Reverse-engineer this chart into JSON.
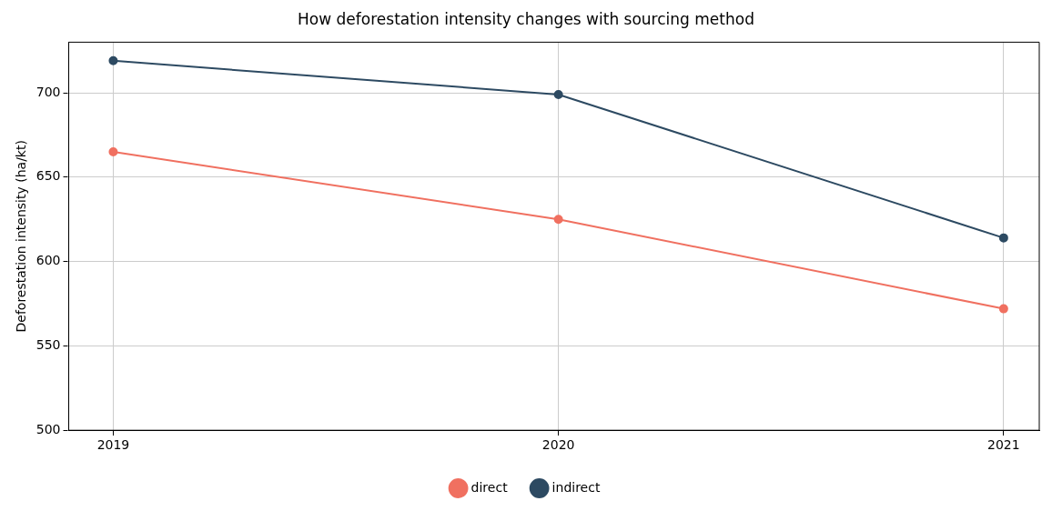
{
  "chart_data": {
    "type": "line",
    "title": "How deforestation intensity changes with sourcing method",
    "ylabel": "Deforestation intensity (ha/kt)",
    "x": [
      2019,
      2020,
      2021
    ],
    "series": [
      {
        "name": "direct",
        "color": "#f07060",
        "values": [
          665,
          625,
          572
        ]
      },
      {
        "name": "indirect",
        "color": "#2d4a62",
        "values": [
          719,
          699,
          614
        ]
      }
    ],
    "xlim": [
      2018.9,
      2021.08
    ],
    "xticks": [
      2019,
      2020,
      2021
    ],
    "ylim": [
      500,
      730
    ],
    "yticks": [
      500,
      550,
      600,
      650,
      700
    ],
    "grid": true,
    "legend": "bottom",
    "marker": "circle",
    "line_style": "solid"
  }
}
